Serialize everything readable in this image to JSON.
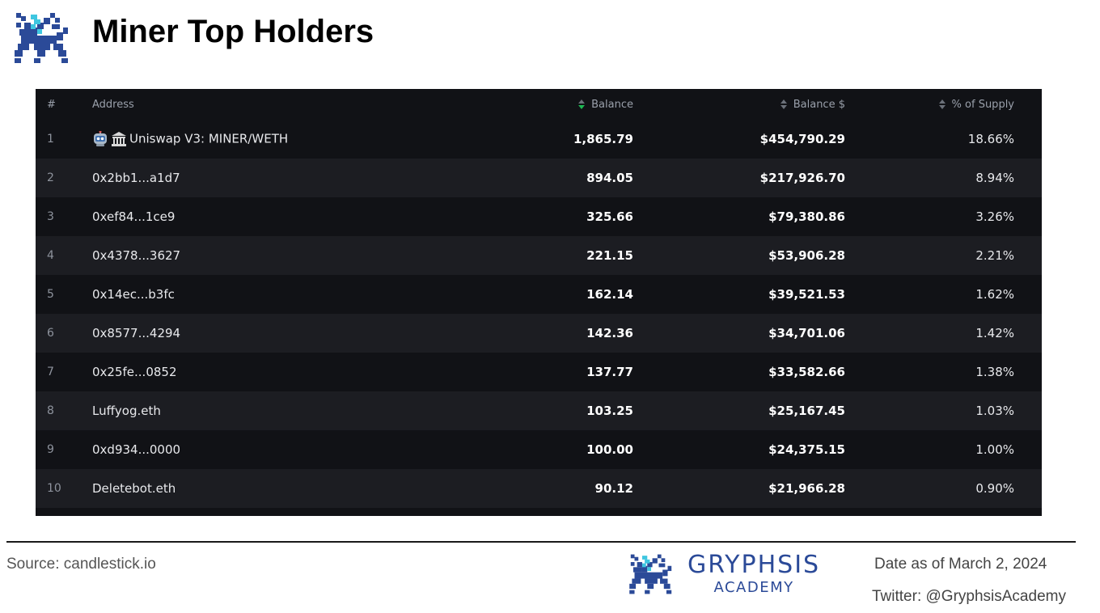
{
  "header": {
    "title": "Miner Top Holders",
    "logo_icon": "gryphon-logo-icon"
  },
  "table": {
    "columns": {
      "rank": "#",
      "address": "Address",
      "balance": "Balance",
      "balance_usd": "Balance $",
      "supply_pct": "% of Supply"
    },
    "sorted_column": "balance",
    "rows": [
      {
        "rank": "1",
        "address": "Uniswap V3: MINER/WETH",
        "icons": [
          "robot-icon",
          "bank-icon"
        ],
        "balance": "1,865.79",
        "balance_usd": "$454,790.29",
        "supply_pct": "18.66%"
      },
      {
        "rank": "2",
        "address": "0x2bb1...a1d7",
        "balance": "894.05",
        "balance_usd": "$217,926.70",
        "supply_pct": "8.94%"
      },
      {
        "rank": "3",
        "address": "0xef84...1ce9",
        "balance": "325.66",
        "balance_usd": "$79,380.86",
        "supply_pct": "3.26%"
      },
      {
        "rank": "4",
        "address": "0x4378...3627",
        "balance": "221.15",
        "balance_usd": "$53,906.28",
        "supply_pct": "2.21%"
      },
      {
        "rank": "5",
        "address": "0x14ec...b3fc",
        "balance": "162.14",
        "balance_usd": "$39,521.53",
        "supply_pct": "1.62%"
      },
      {
        "rank": "6",
        "address": "0x8577...4294",
        "balance": "142.36",
        "balance_usd": "$34,701.06",
        "supply_pct": "1.42%"
      },
      {
        "rank": "7",
        "address": "0x25fe...0852",
        "balance": "137.77",
        "balance_usd": "$33,582.66",
        "supply_pct": "1.38%"
      },
      {
        "rank": "8",
        "address": "Luffyog.eth",
        "balance": "103.25",
        "balance_usd": "$25,167.45",
        "supply_pct": "1.03%"
      },
      {
        "rank": "9",
        "address": "0xd934...0000",
        "balance": "100.00",
        "balance_usd": "$24,375.15",
        "supply_pct": "1.00%"
      },
      {
        "rank": "10",
        "address": "Deletebot.eth",
        "balance": "90.12",
        "balance_usd": "$21,966.28",
        "supply_pct": "0.90%"
      }
    ]
  },
  "footer": {
    "source": "Source: candlestick.io",
    "brand_name": "GRYPHSIS",
    "brand_sub": "ACADEMY",
    "date": "Date as of March 2, 2024",
    "twitter": "Twitter: @GryphsisAcademy"
  },
  "colors": {
    "table_bg": "#111216",
    "row_alt_bg": "#1c1d22",
    "brand_blue": "#2b4a98",
    "logo_cyan": "#3ec6e0",
    "sort_active": "#1db954"
  }
}
